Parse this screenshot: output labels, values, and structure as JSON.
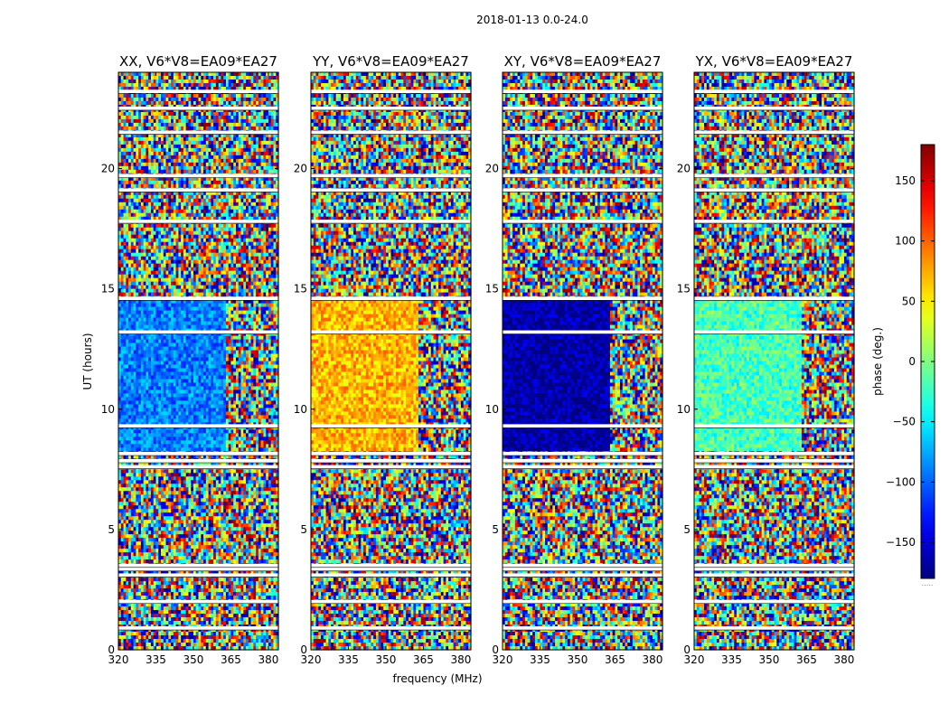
{
  "chart_data": {
    "type": "heatmap",
    "suptitle": "2018-01-13 0.0-24.0",
    "xlabel": "frequency (MHz)",
    "ylabel": "UT (hours)",
    "xlim": [
      320,
      384
    ],
    "ylim": [
      0,
      24
    ],
    "xticks": [
      320,
      335,
      350,
      365,
      380
    ],
    "yticks": [
      0,
      5,
      10,
      15,
      20
    ],
    "colormap": "jet",
    "colorbar": {
      "label": "phase (deg.)",
      "range": [
        -180,
        180
      ],
      "ticks": [
        -150,
        -100,
        -50,
        0,
        50,
        100,
        150
      ],
      "tick_labels": [
        "−150",
        "−100",
        "−50",
        "0",
        "50",
        "100",
        "150"
      ],
      "footer": "....."
    },
    "panels": [
      {
        "title": "XX, V6*V8=EA09*EA27",
        "coherent_phase_deg": -90
      },
      {
        "title": "YY, V6*V8=EA09*EA27",
        "coherent_phase_deg": 70
      },
      {
        "title": "XY, V6*V8=EA09*EA27",
        "coherent_phase_deg": -170
      },
      {
        "title": "YX, V6*V8=EA09*EA27",
        "coherent_phase_deg": -20
      }
    ],
    "coherent_band": {
      "ut_range": [
        8.2,
        14.6
      ],
      "freq_range": [
        320,
        363
      ]
    },
    "flagged_ut_hours": [
      0.9,
      2.0,
      3.1,
      3.35,
      3.5,
      7.6,
      7.85,
      8.15,
      9.3,
      13.2,
      14.6,
      17.8,
      19.1,
      19.7,
      21.5,
      22.5,
      23.2
    ]
  }
}
